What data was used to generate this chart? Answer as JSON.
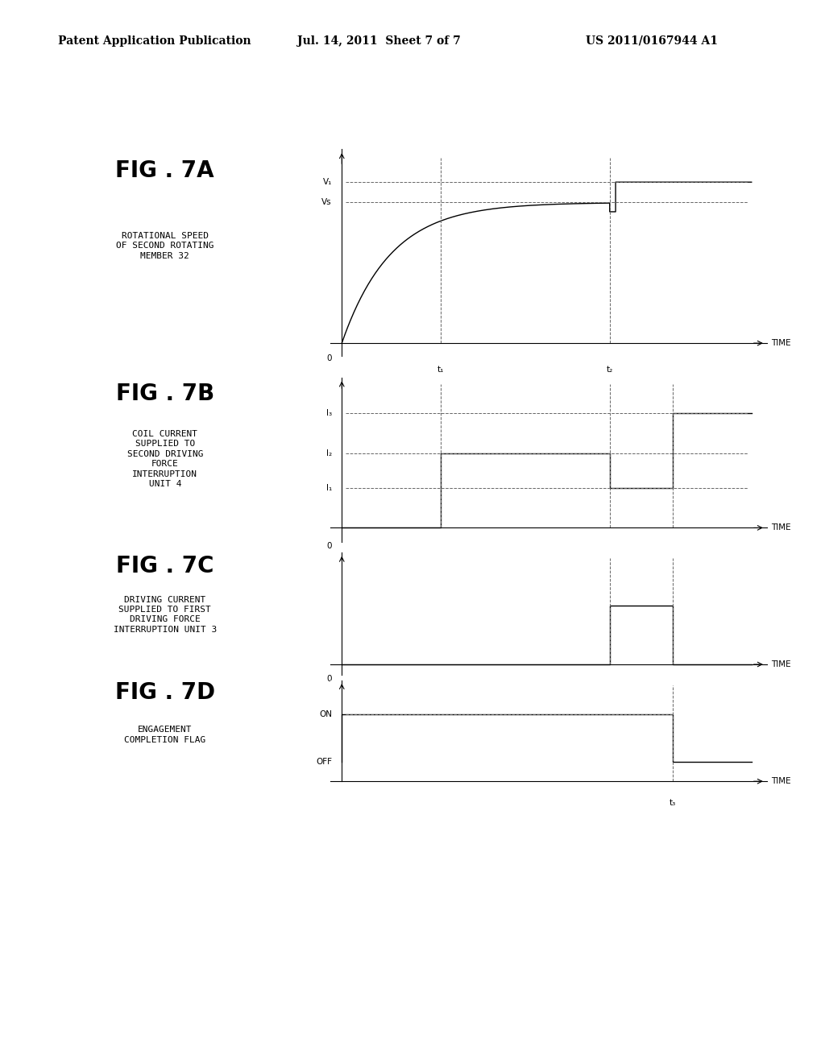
{
  "background_color": "#ffffff",
  "header_left": "Patent Application Publication",
  "header_center": "Jul. 14, 2011  Sheet 7 of 7",
  "header_right": "US 2011/0167944 A1",
  "header_fontsize": 10,
  "fig_labels": [
    "FIG . 7A",
    "FIG . 7B",
    "FIG . 7C",
    "FIG . 7D"
  ],
  "fig_sublabels": [
    "ROTATIONAL SPEED\nOF SECOND ROTATING\nMEMBER 32",
    "COIL CURRENT\nSUPPLIED TO\nSECOND DRIVING\nFORCE\nINTERRUPTION\nUNIT 4",
    "DRIVING CURRENT\nSUPPLIED TO FIRST\nDRIVING FORCE\nINTERRUPTION UNIT 3",
    "ENGAGEMENT\nCOMPLETION FLAG"
  ],
  "fig_label_fontsize": 20,
  "fig_sublabel_fontsize": 8,
  "plot_color": "#000000",
  "dashed_color": "#666666",
  "t1_rel": 0.25,
  "t2_rel": 0.68,
  "t3_rel": 0.84,
  "V1_rel": 0.87,
  "Vs_rel": 0.76,
  "I1_rel": 0.28,
  "I2_rel": 0.52,
  "I3_rel": 0.8,
  "Ic_rel": 0.55,
  "ON_rel": 0.7,
  "OFF_rel": 0.2
}
